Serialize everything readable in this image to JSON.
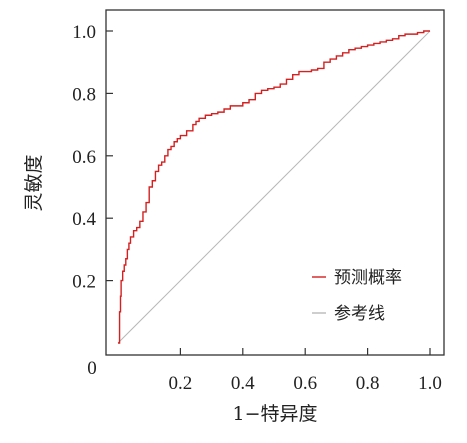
{
  "chart_data": {
    "type": "line",
    "xlabel": "1−特异度",
    "ylabel": "灵敏度",
    "xlim": [
      0,
      1
    ],
    "ylim": [
      0,
      1
    ],
    "x_ticks": [
      0.2,
      0.4,
      0.6,
      0.8,
      1.0
    ],
    "x_tick_labels": [
      "0.2",
      "0.4",
      "0.6",
      "0.8",
      "1.0"
    ],
    "y_ticks": [
      0.2,
      0.4,
      0.6,
      0.8,
      1.0
    ],
    "y_tick_labels": [
      "0.2",
      "0.4",
      "0.6",
      "0.8",
      "1.0"
    ],
    "origin_label": "0",
    "grid": false,
    "legend_position": "bottom-right",
    "series": [
      {
        "name": "预测概率",
        "color": "#d42020",
        "x": [
          0,
          0.005,
          0.008,
          0.01,
          0.015,
          0.02,
          0.025,
          0.03,
          0.035,
          0.04,
          0.05,
          0.06,
          0.07,
          0.08,
          0.09,
          0.1,
          0.11,
          0.12,
          0.13,
          0.14,
          0.15,
          0.16,
          0.17,
          0.18,
          0.19,
          0.2,
          0.22,
          0.24,
          0.25,
          0.26,
          0.28,
          0.3,
          0.32,
          0.34,
          0.36,
          0.38,
          0.4,
          0.42,
          0.44,
          0.46,
          0.48,
          0.5,
          0.52,
          0.54,
          0.56,
          0.58,
          0.6,
          0.62,
          0.64,
          0.66,
          0.68,
          0.7,
          0.72,
          0.74,
          0.76,
          0.78,
          0.8,
          0.82,
          0.84,
          0.86,
          0.88,
          0.9,
          0.92,
          0.94,
          0.96,
          0.98,
          1.0
        ],
        "y": [
          0,
          0.1,
          0.15,
          0.2,
          0.23,
          0.25,
          0.27,
          0.3,
          0.32,
          0.34,
          0.36,
          0.37,
          0.39,
          0.42,
          0.45,
          0.5,
          0.52,
          0.55,
          0.57,
          0.58,
          0.6,
          0.62,
          0.63,
          0.645,
          0.655,
          0.665,
          0.68,
          0.7,
          0.71,
          0.72,
          0.73,
          0.735,
          0.74,
          0.75,
          0.76,
          0.76,
          0.77,
          0.78,
          0.8,
          0.81,
          0.815,
          0.82,
          0.83,
          0.845,
          0.86,
          0.87,
          0.87,
          0.875,
          0.88,
          0.9,
          0.91,
          0.92,
          0.93,
          0.94,
          0.945,
          0.95,
          0.955,
          0.96,
          0.965,
          0.97,
          0.975,
          0.985,
          0.99,
          0.99,
          0.995,
          1.0,
          1.0
        ]
      },
      {
        "name": "参考线",
        "color": "#b8b8b8",
        "x": [
          0,
          1
        ],
        "y": [
          0,
          1
        ]
      }
    ]
  }
}
